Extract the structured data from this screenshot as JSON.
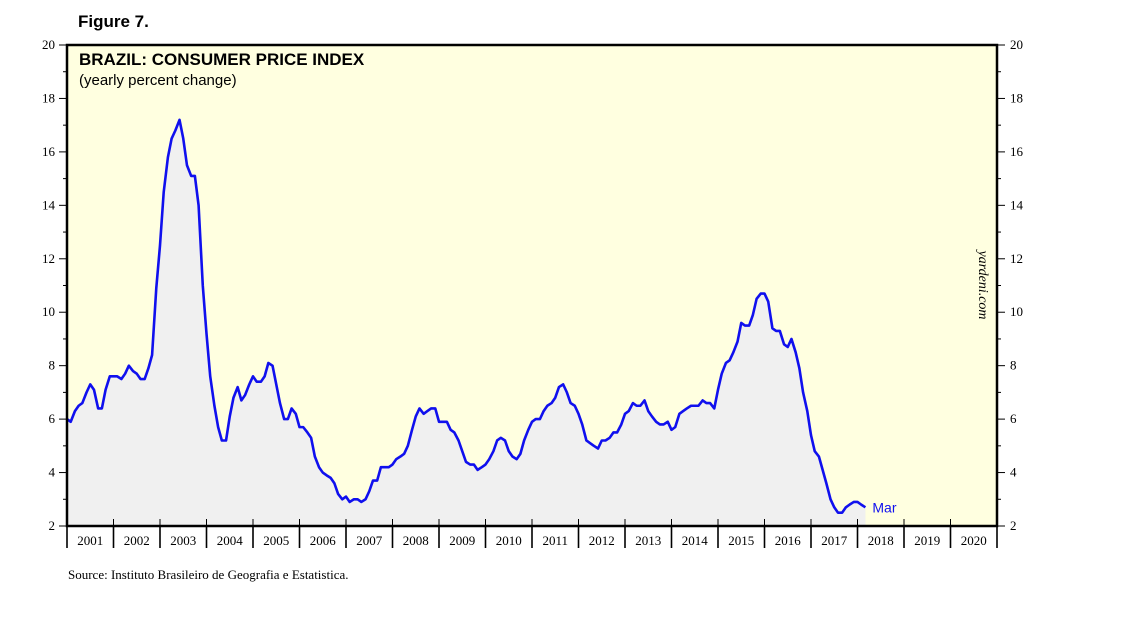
{
  "figure_label": "Figure 7.",
  "source": "Source: Instituto Brasileiro de Geografia e Estatistica.",
  "watermark": "yardeni.com",
  "colors": {
    "plot_bg": "#ffffe0",
    "line": "#1010ee",
    "area": "#f0f0f0",
    "frame": "#000000"
  },
  "chart_data": {
    "type": "area",
    "title": "BRAZIL: CONSUMER PRICE INDEX",
    "subtitle": "(yearly percent change)",
    "xlabel": "",
    "ylabel": "",
    "xlim": [
      2001,
      2021
    ],
    "ylim": [
      2,
      20
    ],
    "y_ticks": [
      2,
      4,
      6,
      8,
      10,
      12,
      14,
      16,
      18,
      20
    ],
    "x_tick_labels": [
      "2001",
      "2002",
      "2003",
      "2004",
      "2005",
      "2006",
      "2007",
      "2008",
      "2009",
      "2010",
      "2011",
      "2012",
      "2013",
      "2014",
      "2015",
      "2016",
      "2017",
      "2018",
      "2019",
      "2020"
    ],
    "end_label": "Mar",
    "grid": false,
    "series": [
      {
        "name": "Brazil CPI (yearly percent change)",
        "points": [
          [
            2001.0,
            6.0
          ],
          [
            2001.08,
            5.9
          ],
          [
            2001.17,
            6.3
          ],
          [
            2001.25,
            6.5
          ],
          [
            2001.33,
            6.6
          ],
          [
            2001.42,
            7.0
          ],
          [
            2001.5,
            7.3
          ],
          [
            2001.58,
            7.1
          ],
          [
            2001.67,
            6.4
          ],
          [
            2001.75,
            6.4
          ],
          [
            2001.83,
            7.1
          ],
          [
            2001.92,
            7.6
          ],
          [
            2002.0,
            7.6
          ],
          [
            2002.08,
            7.6
          ],
          [
            2002.17,
            7.5
          ],
          [
            2002.25,
            7.7
          ],
          [
            2002.33,
            8.0
          ],
          [
            2002.42,
            7.8
          ],
          [
            2002.5,
            7.7
          ],
          [
            2002.58,
            7.5
          ],
          [
            2002.67,
            7.5
          ],
          [
            2002.75,
            7.9
          ],
          [
            2002.83,
            8.4
          ],
          [
            2002.92,
            10.9
          ],
          [
            2003.0,
            12.5
          ],
          [
            2003.08,
            14.5
          ],
          [
            2003.17,
            15.8
          ],
          [
            2003.25,
            16.5
          ],
          [
            2003.33,
            16.8
          ],
          [
            2003.42,
            17.2
          ],
          [
            2003.5,
            16.5
          ],
          [
            2003.58,
            15.5
          ],
          [
            2003.67,
            15.1
          ],
          [
            2003.75,
            15.1
          ],
          [
            2003.83,
            14.0
          ],
          [
            2003.92,
            11.0
          ],
          [
            2004.0,
            9.2
          ],
          [
            2004.08,
            7.6
          ],
          [
            2004.17,
            6.5
          ],
          [
            2004.25,
            5.7
          ],
          [
            2004.33,
            5.2
          ],
          [
            2004.42,
            5.2
          ],
          [
            2004.5,
            6.1
          ],
          [
            2004.58,
            6.8
          ],
          [
            2004.67,
            7.2
          ],
          [
            2004.75,
            6.7
          ],
          [
            2004.83,
            6.9
          ],
          [
            2004.92,
            7.3
          ],
          [
            2005.0,
            7.6
          ],
          [
            2005.08,
            7.4
          ],
          [
            2005.17,
            7.4
          ],
          [
            2005.25,
            7.6
          ],
          [
            2005.33,
            8.1
          ],
          [
            2005.42,
            8.0
          ],
          [
            2005.5,
            7.3
          ],
          [
            2005.58,
            6.6
          ],
          [
            2005.67,
            6.0
          ],
          [
            2005.75,
            6.0
          ],
          [
            2005.83,
            6.4
          ],
          [
            2005.92,
            6.2
          ],
          [
            2006.0,
            5.7
          ],
          [
            2006.08,
            5.7
          ],
          [
            2006.17,
            5.5
          ],
          [
            2006.25,
            5.3
          ],
          [
            2006.33,
            4.6
          ],
          [
            2006.42,
            4.2
          ],
          [
            2006.5,
            4.0
          ],
          [
            2006.58,
            3.9
          ],
          [
            2006.67,
            3.8
          ],
          [
            2006.75,
            3.6
          ],
          [
            2006.83,
            3.2
          ],
          [
            2006.92,
            3.0
          ],
          [
            2007.0,
            3.1
          ],
          [
            2007.08,
            2.9
          ],
          [
            2007.17,
            3.0
          ],
          [
            2007.25,
            3.0
          ],
          [
            2007.33,
            2.9
          ],
          [
            2007.42,
            3.0
          ],
          [
            2007.5,
            3.3
          ],
          [
            2007.58,
            3.7
          ],
          [
            2007.67,
            3.7
          ],
          [
            2007.75,
            4.2
          ],
          [
            2007.83,
            4.2
          ],
          [
            2007.92,
            4.2
          ],
          [
            2008.0,
            4.3
          ],
          [
            2008.08,
            4.5
          ],
          [
            2008.17,
            4.6
          ],
          [
            2008.25,
            4.7
          ],
          [
            2008.33,
            5.0
          ],
          [
            2008.42,
            5.6
          ],
          [
            2008.5,
            6.1
          ],
          [
            2008.58,
            6.4
          ],
          [
            2008.67,
            6.2
          ],
          [
            2008.75,
            6.3
          ],
          [
            2008.83,
            6.4
          ],
          [
            2008.92,
            6.4
          ],
          [
            2009.0,
            5.9
          ],
          [
            2009.08,
            5.9
          ],
          [
            2009.17,
            5.9
          ],
          [
            2009.25,
            5.6
          ],
          [
            2009.33,
            5.5
          ],
          [
            2009.42,
            5.2
          ],
          [
            2009.5,
            4.8
          ],
          [
            2009.58,
            4.4
          ],
          [
            2009.67,
            4.3
          ],
          [
            2009.75,
            4.3
          ],
          [
            2009.83,
            4.1
          ],
          [
            2009.92,
            4.2
          ],
          [
            2010.0,
            4.3
          ],
          [
            2010.08,
            4.5
          ],
          [
            2010.17,
            4.8
          ],
          [
            2010.25,
            5.2
          ],
          [
            2010.33,
            5.3
          ],
          [
            2010.42,
            5.2
          ],
          [
            2010.5,
            4.8
          ],
          [
            2010.58,
            4.6
          ],
          [
            2010.67,
            4.5
          ],
          [
            2010.75,
            4.7
          ],
          [
            2010.83,
            5.2
          ],
          [
            2010.92,
            5.6
          ],
          [
            2011.0,
            5.9
          ],
          [
            2011.08,
            6.0
          ],
          [
            2011.17,
            6.0
          ],
          [
            2011.25,
            6.3
          ],
          [
            2011.33,
            6.5
          ],
          [
            2011.42,
            6.6
          ],
          [
            2011.5,
            6.8
          ],
          [
            2011.58,
            7.2
          ],
          [
            2011.67,
            7.3
          ],
          [
            2011.75,
            7.0
          ],
          [
            2011.83,
            6.6
          ],
          [
            2011.92,
            6.5
          ],
          [
            2012.0,
            6.2
          ],
          [
            2012.08,
            5.8
          ],
          [
            2012.17,
            5.2
          ],
          [
            2012.25,
            5.1
          ],
          [
            2012.33,
            5.0
          ],
          [
            2012.42,
            4.9
          ],
          [
            2012.5,
            5.2
          ],
          [
            2012.58,
            5.2
          ],
          [
            2012.67,
            5.3
          ],
          [
            2012.75,
            5.5
          ],
          [
            2012.83,
            5.5
          ],
          [
            2012.92,
            5.8
          ],
          [
            2013.0,
            6.2
          ],
          [
            2013.08,
            6.3
          ],
          [
            2013.17,
            6.6
          ],
          [
            2013.25,
            6.5
          ],
          [
            2013.33,
            6.5
          ],
          [
            2013.42,
            6.7
          ],
          [
            2013.5,
            6.3
          ],
          [
            2013.58,
            6.1
          ],
          [
            2013.67,
            5.9
          ],
          [
            2013.75,
            5.8
          ],
          [
            2013.83,
            5.8
          ],
          [
            2013.92,
            5.9
          ],
          [
            2014.0,
            5.6
          ],
          [
            2014.08,
            5.7
          ],
          [
            2014.17,
            6.2
          ],
          [
            2014.25,
            6.3
          ],
          [
            2014.33,
            6.4
          ],
          [
            2014.42,
            6.5
          ],
          [
            2014.5,
            6.5
          ],
          [
            2014.58,
            6.5
          ],
          [
            2014.67,
            6.7
          ],
          [
            2014.75,
            6.6
          ],
          [
            2014.83,
            6.6
          ],
          [
            2014.92,
            6.4
          ],
          [
            2015.0,
            7.1
          ],
          [
            2015.08,
            7.7
          ],
          [
            2015.17,
            8.1
          ],
          [
            2015.25,
            8.2
          ],
          [
            2015.33,
            8.5
          ],
          [
            2015.42,
            8.9
          ],
          [
            2015.5,
            9.6
          ],
          [
            2015.58,
            9.5
          ],
          [
            2015.67,
            9.5
          ],
          [
            2015.75,
            9.9
          ],
          [
            2015.83,
            10.5
          ],
          [
            2015.92,
            10.7
          ],
          [
            2016.0,
            10.7
          ],
          [
            2016.08,
            10.4
          ],
          [
            2016.17,
            9.4
          ],
          [
            2016.25,
            9.3
          ],
          [
            2016.33,
            9.3
          ],
          [
            2016.42,
            8.8
          ],
          [
            2016.5,
            8.7
          ],
          [
            2016.58,
            9.0
          ],
          [
            2016.67,
            8.5
          ],
          [
            2016.75,
            7.9
          ],
          [
            2016.83,
            7.0
          ],
          [
            2016.92,
            6.3
          ],
          [
            2017.0,
            5.4
          ],
          [
            2017.08,
            4.8
          ],
          [
            2017.17,
            4.6
          ],
          [
            2017.25,
            4.1
          ],
          [
            2017.33,
            3.6
          ],
          [
            2017.42,
            3.0
          ],
          [
            2017.5,
            2.7
          ],
          [
            2017.58,
            2.5
          ],
          [
            2017.67,
            2.5
          ],
          [
            2017.75,
            2.7
          ],
          [
            2017.83,
            2.8
          ],
          [
            2017.92,
            2.9
          ],
          [
            2018.0,
            2.9
          ],
          [
            2018.08,
            2.8
          ],
          [
            2018.17,
            2.7
          ]
        ]
      }
    ]
  }
}
